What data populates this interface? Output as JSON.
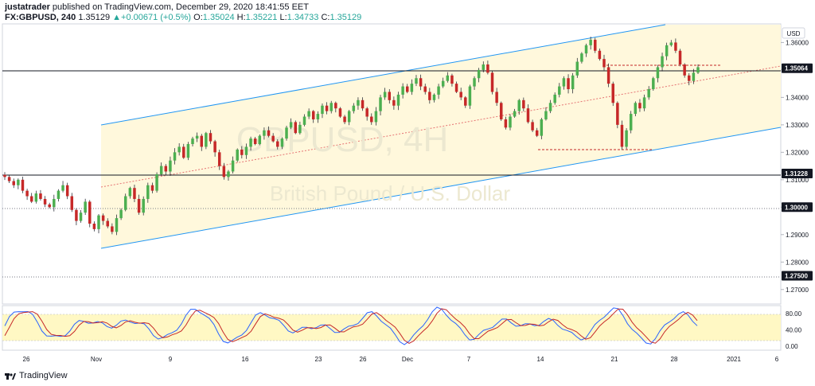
{
  "header": {
    "author": "justatrader",
    "published_text": "published on TradingView.com, December 29, 2020 18:41:55 EET",
    "symbol": "FX:GBPUSD, 240",
    "last_price": "1.35129",
    "change_arrow": "▲",
    "change": "+0.00671 (+0.5%)",
    "open_label": "O:",
    "open": "1.35024",
    "high_label": "H:",
    "high": "1.35221",
    "low_label": "L:",
    "low": "1.34733",
    "close_label": "C:",
    "close": "1.35129"
  },
  "currency_label": "USD",
  "watermark": {
    "symbol_text": "GBPUSD, 4H",
    "name_text": "British Pound / U.S. Dollar"
  },
  "price_badges": [
    {
      "label": "1.35064",
      "value": 1.35064
    },
    {
      "label": "1.31228",
      "value": 1.31228
    },
    {
      "label": "1.30000",
      "value": 1.3
    },
    {
      "label": "1.27500",
      "value": 1.275
    }
  ],
  "footer": {
    "brand": "TradingView"
  },
  "colors": {
    "up": "#26a69a",
    "up_candle": "#4caf50",
    "down_candle": "#c62828",
    "channel_line": "#2196f3",
    "channel_fill": "#fff8dc",
    "stoch_fill": "#fff8c4",
    "stoch_k": "#2962ff",
    "stoch_d": "#c62828"
  },
  "chart_data": {
    "type": "candlestick",
    "y_ticks": [
      "1.36000",
      "1.35000",
      "1.34000",
      "1.33000",
      "1.32000",
      "1.31000",
      "1.30000",
      "1.29000",
      "1.28000",
      "1.27000"
    ],
    "ylim": [
      1.265,
      1.3665
    ],
    "x_ticks": [
      "26",
      "Nov",
      "9",
      "16",
      "23",
      "26",
      "Dec",
      "7",
      "14",
      "21",
      "28",
      "2021",
      "6"
    ],
    "oscillator": {
      "name": "Stochastic",
      "ticks": [
        "80.00",
        "40.00",
        "0.00"
      ],
      "ylim": [
        -10,
        100
      ],
      "band": [
        20,
        80
      ]
    },
    "horizontal_levels": [
      1.35064,
      1.31228,
      1.3,
      1.275
    ],
    "closes": [
      1.311,
      1.3095,
      1.308,
      1.31,
      1.306,
      1.304,
      1.302,
      1.305,
      1.303,
      1.301,
      1.3,
      1.303,
      1.306,
      1.308,
      1.304,
      1.299,
      1.295,
      1.298,
      1.302,
      1.294,
      1.292,
      1.297,
      1.295,
      1.293,
      1.291,
      1.296,
      1.299,
      1.304,
      1.307,
      1.303,
      1.298,
      1.303,
      1.308,
      1.306,
      1.312,
      1.315,
      1.313,
      1.317,
      1.32,
      1.322,
      1.318,
      1.323,
      1.325,
      1.326,
      1.322,
      1.327,
      1.324,
      1.32,
      1.315,
      1.311,
      1.313,
      1.317,
      1.321,
      1.319,
      1.322,
      1.325,
      1.323,
      1.326,
      1.328,
      1.326,
      1.324,
      1.322,
      1.325,
      1.329,
      1.331,
      1.327,
      1.33,
      1.333,
      1.335,
      1.332,
      1.334,
      1.337,
      1.335,
      1.338,
      1.336,
      1.333,
      1.331,
      1.335,
      1.337,
      1.339,
      1.336,
      1.333,
      1.331,
      1.335,
      1.34,
      1.342,
      1.339,
      1.337,
      1.341,
      1.344,
      1.342,
      1.345,
      1.347,
      1.344,
      1.342,
      1.339,
      1.341,
      1.344,
      1.346,
      1.348,
      1.345,
      1.342,
      1.34,
      1.337,
      1.344,
      1.347,
      1.35,
      1.352,
      1.349,
      1.342,
      1.338,
      1.332,
      1.329,
      1.333,
      1.335,
      1.339,
      1.336,
      1.331,
      1.328,
      1.326,
      1.332,
      1.335,
      1.338,
      1.341,
      1.344,
      1.347,
      1.343,
      1.348,
      1.353,
      1.356,
      1.359,
      1.361,
      1.357,
      1.354,
      1.351,
      1.345,
      1.338,
      1.33,
      1.322,
      1.328,
      1.334,
      1.338,
      1.336,
      1.34,
      1.343,
      1.347,
      1.351,
      1.355,
      1.359,
      1.36,
      1.357,
      1.352,
      1.348,
      1.346,
      1.349,
      1.351
    ]
  }
}
